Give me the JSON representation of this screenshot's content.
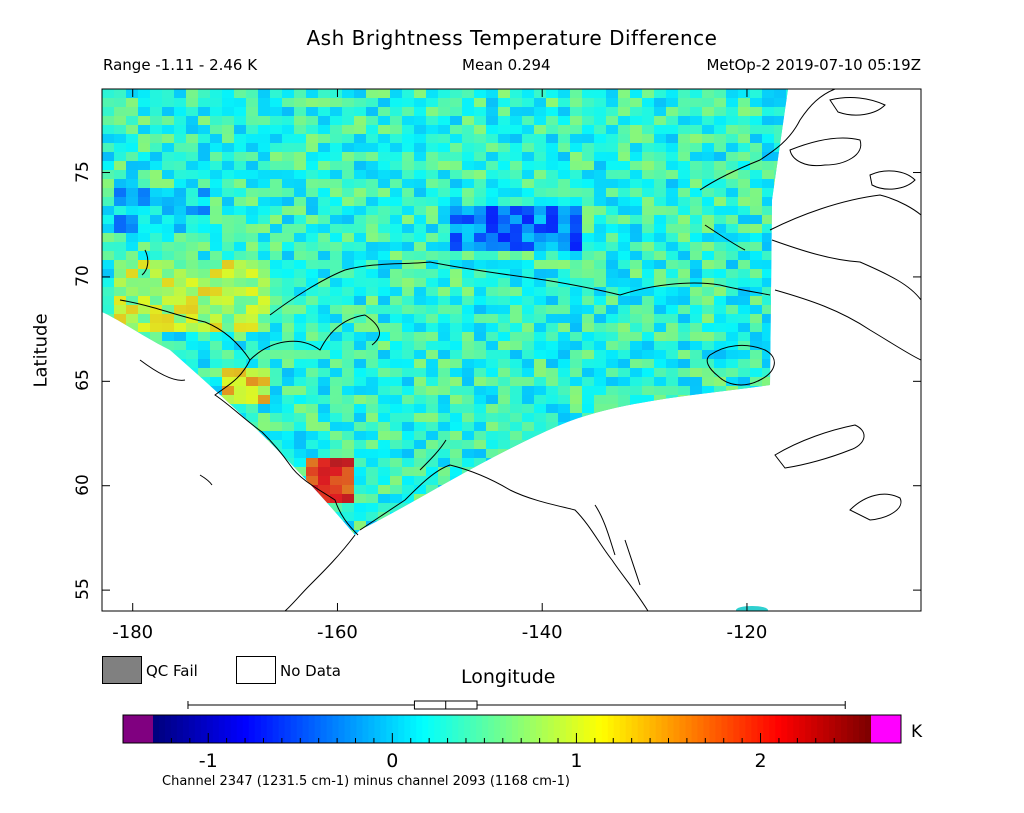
{
  "title": "Ash Brightness Temperature Difference",
  "range_text": "Range -1.11 - 2.46 K",
  "mean_text": "Mean 0.294",
  "satellite_text": "MetOp-2 2019-07-10 05:19Z",
  "map": {
    "lon_range": [
      -183,
      -103
    ],
    "lat_range": [
      54,
      79
    ],
    "x_ticks": [
      "-180",
      "-160",
      "-140",
      "-120"
    ],
    "y_ticks": [
      "55",
      "60",
      "65",
      "70",
      "75"
    ],
    "xlabel": "Longitude",
    "ylabel": "Latitude",
    "data_range_k": [
      -1.11,
      2.46
    ],
    "mean_k": 0.294
  },
  "legend": {
    "qc_fail": "QC Fail",
    "no_data": "No Data",
    "qc_fail_color": "#808080",
    "no_data_color": "#ffffff"
  },
  "colorbar": {
    "range": [
      -1.3,
      2.6
    ],
    "ticks": [
      "-1",
      "0",
      "1",
      "2"
    ],
    "unit": "K",
    "under_color": "#800080",
    "over_color": "#ff00ff",
    "boxplot": {
      "min": -1.11,
      "q1": 0.12,
      "median": 0.29,
      "q3": 0.46,
      "max": 2.46
    }
  },
  "channel_text": "Channel 2347 (1231.5 cm-1) minus channel 2093 (1168 cm-1)"
}
